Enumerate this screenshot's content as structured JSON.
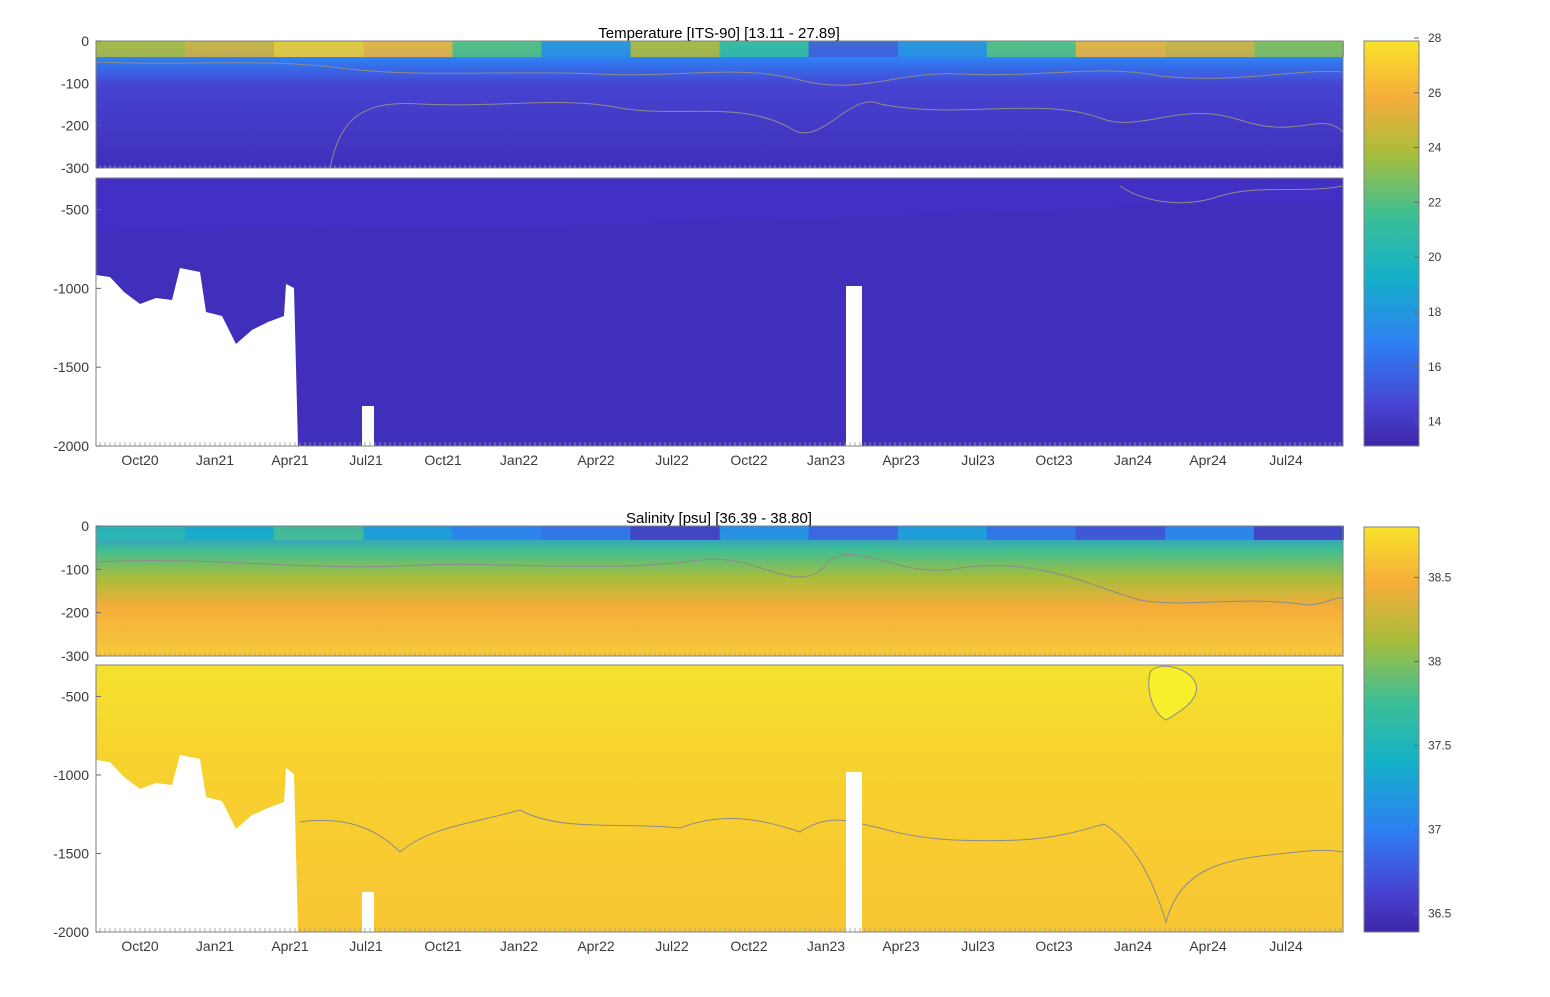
{
  "colors": {
    "temperature": [
      "#3e26a8",
      "#4743d1",
      "#2e7ff3",
      "#14b1c7",
      "#3dbf95",
      "#a8bd3b",
      "#f5ad3a",
      "#f9e22a"
    ],
    "salinity": [
      "#3e26a8",
      "#4743d1",
      "#2e7ff3",
      "#14b1c7",
      "#3dbf95",
      "#a8bd3b",
      "#f5ad3a",
      "#f9e22a"
    ],
    "contour": "#8c8c8c",
    "missing": "#ffffff"
  },
  "chart_data": [
    {
      "type": "heatmap",
      "title": "Temperature [ITS-90]   [13.11 - 27.89]",
      "x_ticks": [
        "Oct20",
        "Jan21",
        "Apr21",
        "Jul21",
        "Oct21",
        "Jan22",
        "Apr22",
        "Jul22",
        "Oct22",
        "Jan23",
        "Apr23",
        "Jul23",
        "Oct23",
        "Jan24",
        "Apr24",
        "Jul24"
      ],
      "upper_panel": {
        "ylim": [
          -300,
          0
        ],
        "y_ticks": [
          "0",
          "-100",
          "-200",
          "-300"
        ]
      },
      "lower_panel": {
        "ylim": [
          -2000,
          -300
        ],
        "y_ticks": [
          "-500",
          "-1000",
          "-1500",
          "-2000"
        ]
      },
      "colorbar": {
        "min": 13.11,
        "max": 27.89,
        "ticks": [
          "14",
          "16",
          "18",
          "20",
          "22",
          "24",
          "26",
          "28"
        ],
        "tick_values": [
          14,
          16,
          18,
          20,
          22,
          24,
          26,
          28
        ]
      },
      "surface_values": [
        24,
        25,
        27,
        26,
        22,
        18,
        24,
        21,
        16,
        18,
        22,
        26,
        25,
        23
      ],
      "deep_value": 13.4
    },
    {
      "type": "heatmap",
      "title": "Salinity [psu]   [36.39 - 38.80]",
      "x_ticks": [
        "Oct20",
        "Jan21",
        "Apr21",
        "Jul21",
        "Oct21",
        "Jan22",
        "Apr22",
        "Jul22",
        "Oct22",
        "Jan23",
        "Apr23",
        "Jul23",
        "Oct23",
        "Jan24",
        "Apr24",
        "Jul24"
      ],
      "upper_panel": {
        "ylim": [
          -300,
          0
        ],
        "y_ticks": [
          "0",
          "-100",
          "-200",
          "-300"
        ]
      },
      "lower_panel": {
        "ylim": [
          -2000,
          -300
        ],
        "y_ticks": [
          "-500",
          "-1000",
          "-1500",
          "-2000"
        ]
      },
      "colorbar": {
        "min": 36.39,
        "max": 38.8,
        "ticks": [
          "36.5",
          "37",
          "37.5",
          "38",
          "38.5"
        ],
        "tick_values": [
          36.5,
          37,
          37.5,
          38,
          38.5
        ]
      },
      "surface_values": [
        37.6,
        37.4,
        37.8,
        37.3,
        37.1,
        37.0,
        36.6,
        37.2,
        36.9,
        37.3,
        37.0,
        36.8,
        37.1,
        36.6
      ],
      "deep_value": 38.62
    }
  ]
}
